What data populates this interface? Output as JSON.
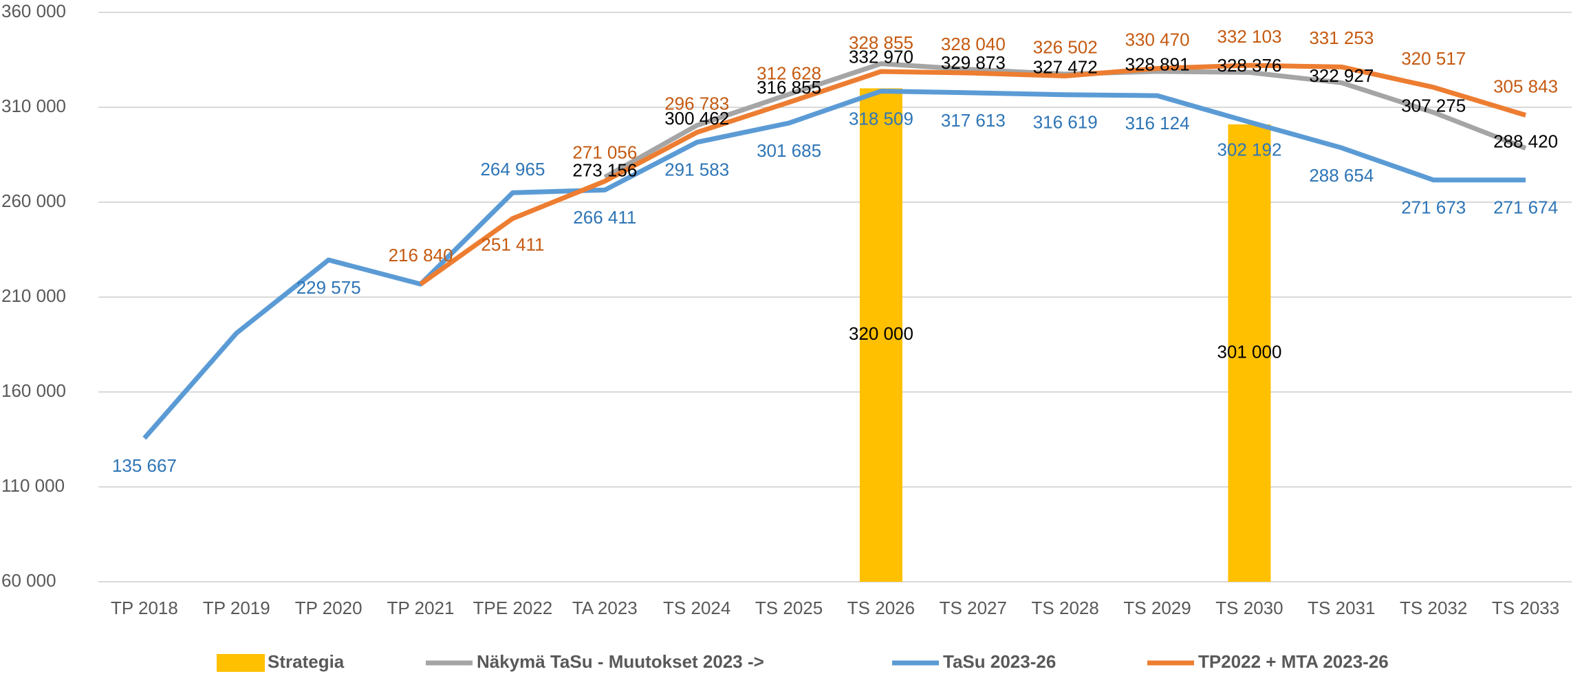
{
  "chart_data": {
    "type": "bar-line",
    "categories": [
      "TP 2018",
      "TP 2019",
      "TP 2020",
      "TP 2021",
      "TPE 2022",
      "TA 2023",
      "TS 2024",
      "TS 2025",
      "TS 2026",
      "TS 2027",
      "TS 2028",
      "TS 2029",
      "TS 2030",
      "TS 2031",
      "TS 2032",
      "TS 2033"
    ],
    "series": [
      {
        "name": "Strategia",
        "type": "bar",
        "color": "#FFC000",
        "label_color": "#000000",
        "values": [
          null,
          null,
          null,
          null,
          null,
          null,
          null,
          null,
          320000,
          null,
          null,
          null,
          301000,
          null,
          null,
          null
        ],
        "value_labels": [
          null,
          null,
          null,
          null,
          null,
          null,
          null,
          null,
          "320 000",
          null,
          null,
          null,
          "301 000",
          null,
          null,
          null
        ]
      },
      {
        "name": "Näkymä TaSu - Muutokset 2023 ->",
        "type": "line",
        "color": "#A5A5A5",
        "label_color": "#000000",
        "values": [
          null,
          null,
          null,
          null,
          null,
          273156,
          300462,
          316855,
          332970,
          329873,
          327472,
          328891,
          328376,
          322927,
          307275,
          288420
        ],
        "value_labels": [
          null,
          null,
          null,
          null,
          null,
          "273 156",
          "300 462",
          "316 855",
          "332 970",
          "329 873",
          "327 472",
          "328 891",
          "328 376",
          "322 927",
          "307 275",
          "288 420"
        ]
      },
      {
        "name": "TaSu 2023-26",
        "type": "line",
        "color": "#5B9BD5",
        "label_color": "#2E75B6",
        "values": [
          135667,
          191000,
          229575,
          216840,
          264965,
          266411,
          291583,
          301685,
          318509,
          317613,
          316619,
          316124,
          302192,
          288654,
          271673,
          271674
        ],
        "value_labels": [
          "135 667",
          null,
          "229 575",
          null,
          "264 965",
          "266 411",
          "291 583",
          "301 685",
          "318 509",
          "317 613",
          "316 619",
          "316 124",
          "302 192",
          "288 654",
          "271 673",
          "271 674"
        ]
      },
      {
        "name": "TP2022 + MTA 2023-26",
        "type": "line",
        "color": "#ED7D31",
        "label_color": "#C55A11",
        "values": [
          null,
          null,
          null,
          216840,
          251411,
          271056,
          296783,
          312628,
          328855,
          328040,
          326502,
          330470,
          332103,
          331253,
          320517,
          305843
        ],
        "value_labels": [
          null,
          null,
          null,
          "216 840",
          "251 411",
          "271 056",
          "296 783",
          "312 628",
          "328 855",
          "328 040",
          "326 502",
          "330 470",
          "332 103",
          "331 253",
          "320 517",
          "305 843"
        ]
      }
    ],
    "ylim": [
      60000,
      360000
    ],
    "yticks": [
      {
        "value": 60000,
        "label": "60 000"
      },
      {
        "value": 110000,
        "label": "110 000"
      },
      {
        "value": 160000,
        "label": "160 000"
      },
      {
        "value": 210000,
        "label": "210 000"
      },
      {
        "value": 260000,
        "label": "260 000"
      },
      {
        "value": 310000,
        "label": "310 000"
      },
      {
        "value": 360000,
        "label": "360 000"
      }
    ],
    "grid": true,
    "legend": "bottom"
  }
}
